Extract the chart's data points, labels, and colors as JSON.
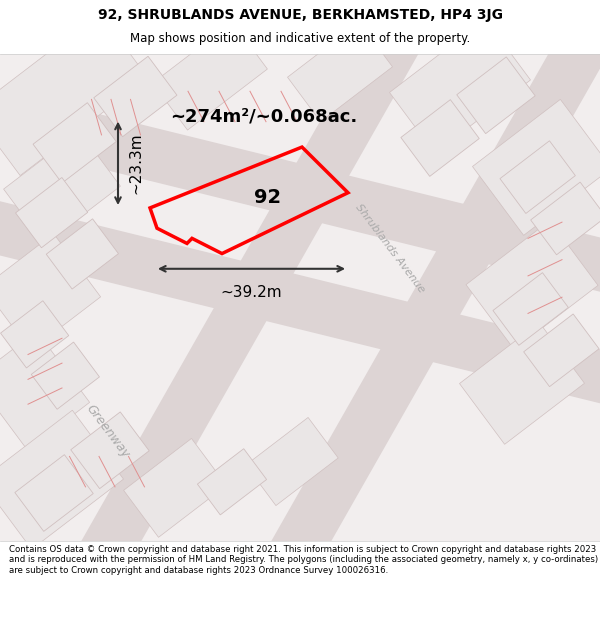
{
  "title_line1": "92, SHRUBLANDS AVENUE, BERKHAMSTED, HP4 3JG",
  "title_line2": "Map shows position and indicative extent of the property.",
  "footer_text": "Contains OS data © Crown copyright and database right 2021. This information is subject to Crown copyright and database rights 2023 and is reproduced with the permission of HM Land Registry. The polygons (including the associated geometry, namely x, y co-ordinates) are subject to Crown copyright and database rights 2023 Ordnance Survey 100026316.",
  "area_text": "~274m²/~0.068ac.",
  "width_text": "~39.2m",
  "height_text": "~23.3m",
  "property_number": "92",
  "map_bg": "#f0ecec",
  "property_color": "#ff0000",
  "dim_color": "#333333",
  "street_label_color": "#aaaaaa",
  "title_color": "#000000",
  "footer_color": "#000000",
  "ang": 37,
  "road_fill": "#ddd4d4",
  "block_face": "#eae6e6",
  "block_edge": "#d0c0c0",
  "pink": "#e09090"
}
